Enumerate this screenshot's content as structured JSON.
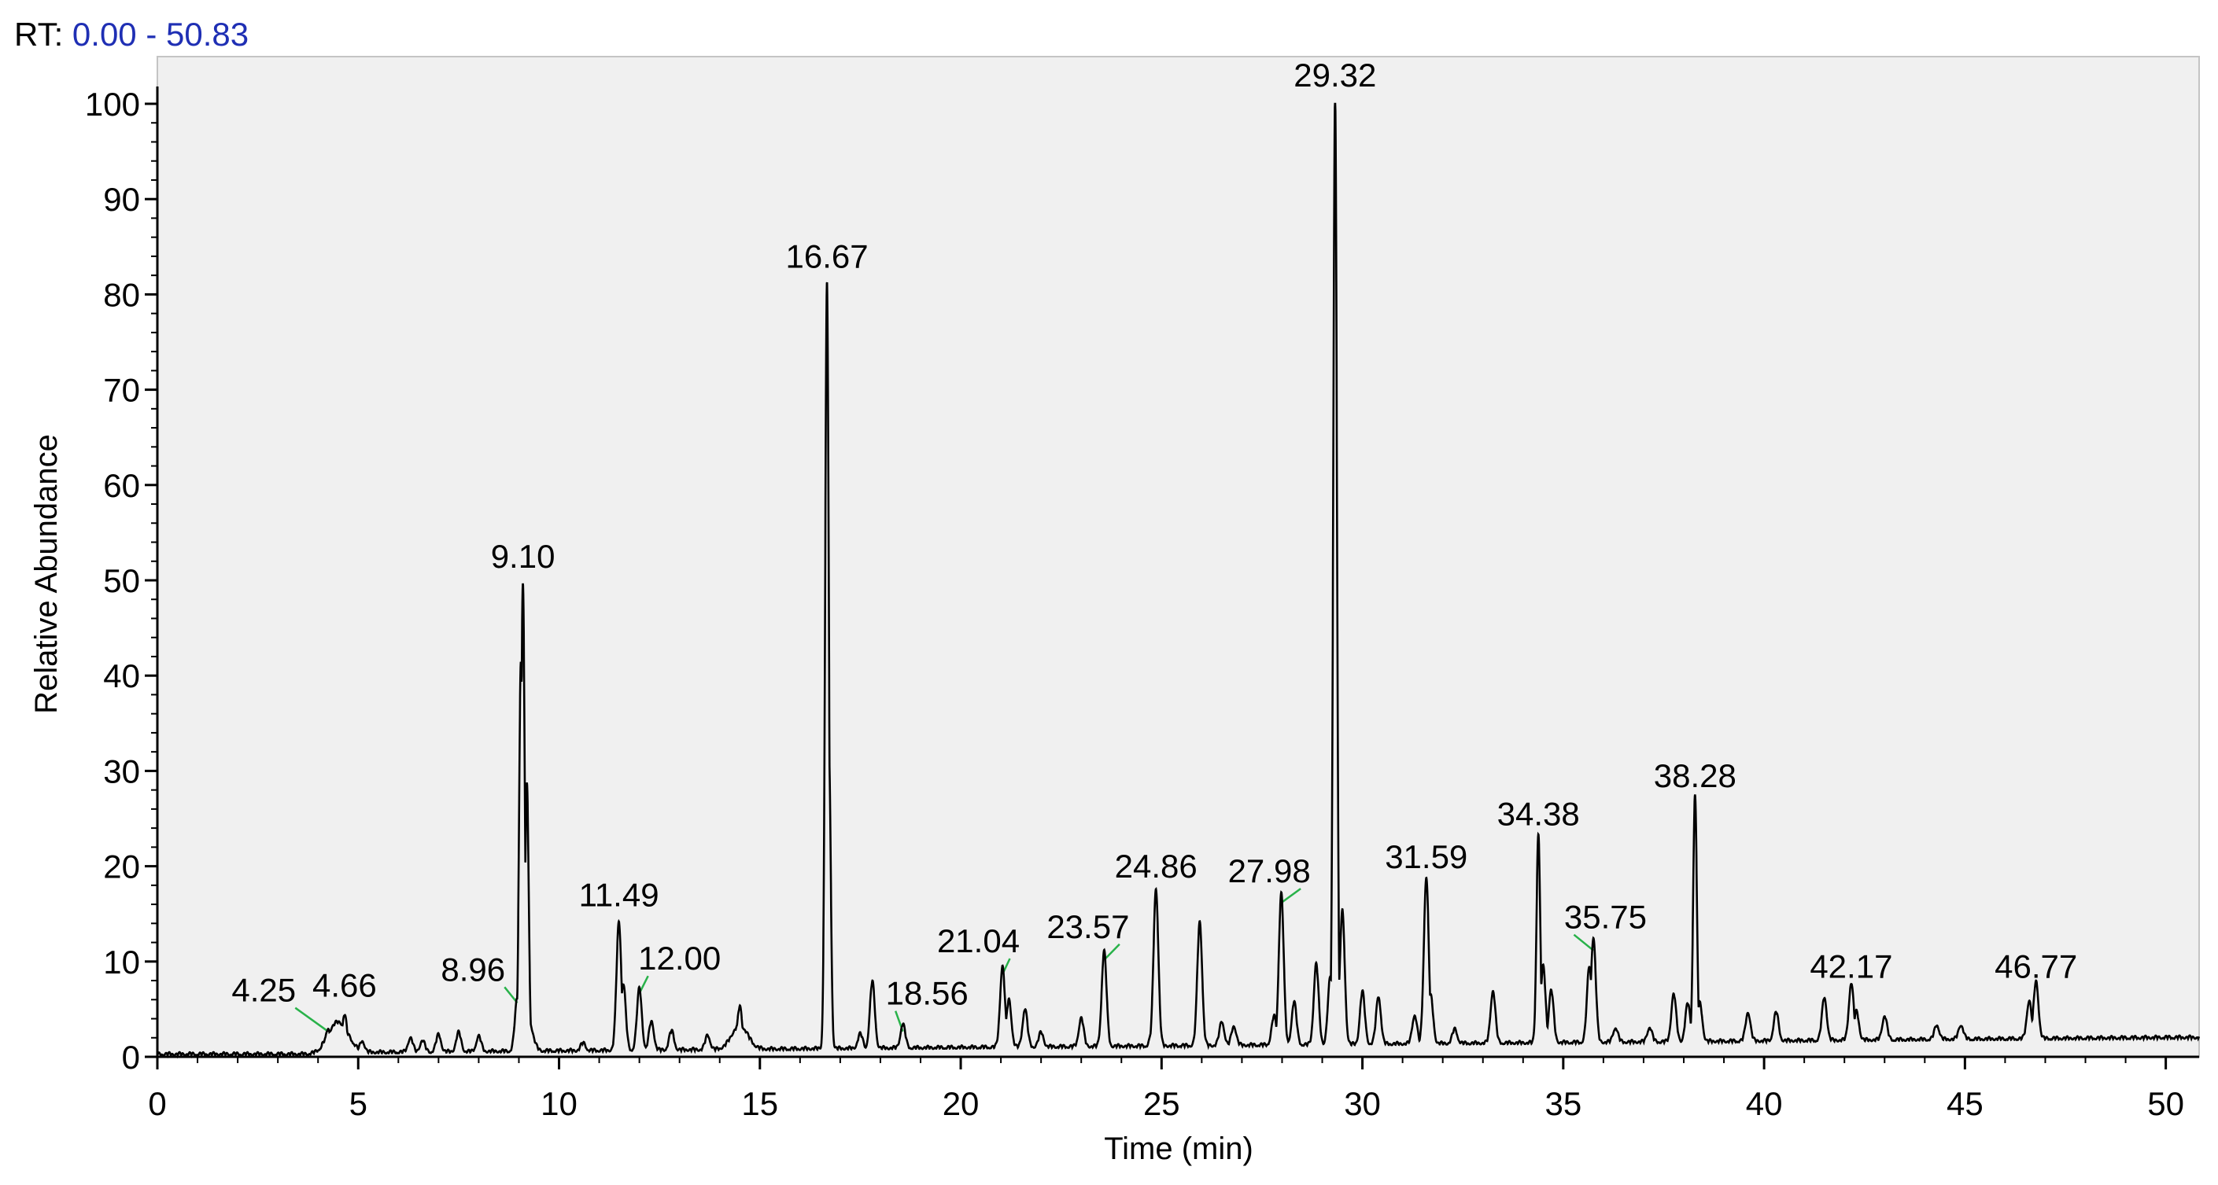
{
  "header": {
    "label": "RT:",
    "range": "0.00 - 50.83"
  },
  "chart_data": {
    "type": "line",
    "title": "",
    "xlabel": "Time (min)",
    "ylabel": "Relative Abundance",
    "xlim": [
      0,
      50.83
    ],
    "ylim": [
      0,
      100
    ],
    "x_ticks": [
      0,
      5,
      10,
      15,
      20,
      25,
      30,
      35,
      40,
      45,
      50
    ],
    "y_ticks": [
      0,
      10,
      20,
      30,
      40,
      50,
      60,
      70,
      80,
      90,
      100
    ],
    "grid": false,
    "peaks": [
      {
        "rt": 4.25,
        "height": 2.5,
        "label": "4.25"
      },
      {
        "rt": 4.66,
        "height": 4.0,
        "label": "4.66"
      },
      {
        "rt": 8.96,
        "height": 5.5,
        "label": "8.96"
      },
      {
        "rt": 9.1,
        "height": 49,
        "label": "9.10"
      },
      {
        "rt": 11.49,
        "height": 13.5,
        "label": "11.49"
      },
      {
        "rt": 12.0,
        "height": 6.5,
        "label": "12.00"
      },
      {
        "rt": 16.67,
        "height": 80.5,
        "label": "16.67"
      },
      {
        "rt": 18.56,
        "height": 2.5,
        "label": "18.56"
      },
      {
        "rt": 21.04,
        "height": 8.5,
        "label": "21.04"
      },
      {
        "rt": 23.57,
        "height": 10,
        "label": "23.57"
      },
      {
        "rt": 24.86,
        "height": 16.5,
        "label": "24.86"
      },
      {
        "rt": 27.98,
        "height": 16,
        "label": "27.98"
      },
      {
        "rt": 29.32,
        "height": 100,
        "label": "29.32"
      },
      {
        "rt": 31.59,
        "height": 17.5,
        "label": "31.59"
      },
      {
        "rt": 34.38,
        "height": 22,
        "label": "34.38"
      },
      {
        "rt": 35.75,
        "height": 11,
        "label": "35.75"
      },
      {
        "rt": 38.28,
        "height": 26,
        "label": "38.28"
      },
      {
        "rt": 42.17,
        "height": 6,
        "label": "42.17"
      },
      {
        "rt": 46.77,
        "height": 6,
        "label": "46.77"
      }
    ],
    "minor_peaks": [
      [
        5.1,
        1.2
      ],
      [
        6.3,
        1.5
      ],
      [
        6.6,
        1.2
      ],
      [
        7.0,
        1.8
      ],
      [
        7.5,
        2.0
      ],
      [
        8.0,
        1.6
      ],
      [
        9.05,
        41
      ],
      [
        9.2,
        28
      ],
      [
        10.6,
        0.8
      ],
      [
        11.6,
        7
      ],
      [
        12.3,
        3
      ],
      [
        12.8,
        2
      ],
      [
        13.7,
        1.5
      ],
      [
        14.5,
        4.5
      ],
      [
        16.72,
        31
      ],
      [
        17.5,
        1.5
      ],
      [
        17.8,
        7
      ],
      [
        21.2,
        5
      ],
      [
        21.6,
        4
      ],
      [
        22.0,
        1.5
      ],
      [
        23.0,
        3
      ],
      [
        24.8,
        3
      ],
      [
        25.95,
        13
      ],
      [
        26.5,
        2.5
      ],
      [
        26.8,
        2
      ],
      [
        27.8,
        3
      ],
      [
        28.3,
        4.5
      ],
      [
        28.85,
        8.5
      ],
      [
        29.2,
        7
      ],
      [
        29.5,
        14
      ],
      [
        30.0,
        5.5
      ],
      [
        30.4,
        5
      ],
      [
        31.3,
        3
      ],
      [
        31.7,
        5
      ],
      [
        32.3,
        1.5
      ],
      [
        33.25,
        5.5
      ],
      [
        34.5,
        8
      ],
      [
        34.7,
        5.5
      ],
      [
        35.65,
        8
      ],
      [
        36.3,
        1.5
      ],
      [
        37.15,
        1.5
      ],
      [
        37.75,
        5
      ],
      [
        38.1,
        4
      ],
      [
        38.4,
        4
      ],
      [
        39.6,
        3
      ],
      [
        40.3,
        3
      ],
      [
        41.5,
        4.5
      ],
      [
        42.3,
        3
      ],
      [
        43.0,
        2.5
      ],
      [
        44.3,
        1.5
      ],
      [
        44.9,
        1.5
      ],
      [
        46.6,
        4
      ]
    ]
  }
}
